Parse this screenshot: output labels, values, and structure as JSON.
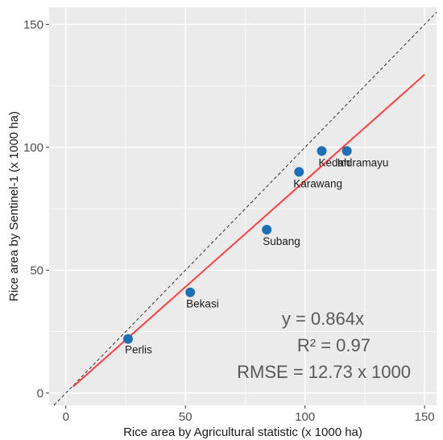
{
  "chart_data": {
    "type": "scatter",
    "title": "",
    "xlabel": "Rice area by Agricultural statistic (x 1000 ha)",
    "ylabel": "Rice area by Sentinel-1 (x 1000 ha)",
    "xlim": [
      -7,
      155
    ],
    "ylim": [
      -5,
      157
    ],
    "x_ticks": [
      0,
      50,
      100,
      150
    ],
    "y_ticks": [
      0,
      50,
      100,
      150
    ],
    "grid": true,
    "points": [
      {
        "label": "Perlis",
        "x": 26,
        "y": 22
      },
      {
        "label": "Bekasi",
        "x": 52,
        "y": 41
      },
      {
        "label": "Subang",
        "x": 84,
        "y": 66.5
      },
      {
        "label": "Karawang",
        "x": 97.5,
        "y": 90
      },
      {
        "label": "Kedah",
        "x": 107,
        "y": 98.5
      },
      {
        "label": "Indramayu",
        "x": 117.5,
        "y": 98.5
      }
    ],
    "reference_line": {
      "type": "1:1",
      "style": "dashed",
      "color": "#333333"
    },
    "fit_line": {
      "slope": 0.864,
      "x_range": [
        3,
        150
      ],
      "color": "#ff4040"
    },
    "annotations": [
      "y = 0.864x",
      "R² = 0.97",
      "RMSE = 12.73 x 1000"
    ],
    "colors": {
      "panel": "#ebebeb",
      "grid": "#ffffff",
      "points": "#1f6fb4",
      "fit": "#ff4040"
    }
  }
}
